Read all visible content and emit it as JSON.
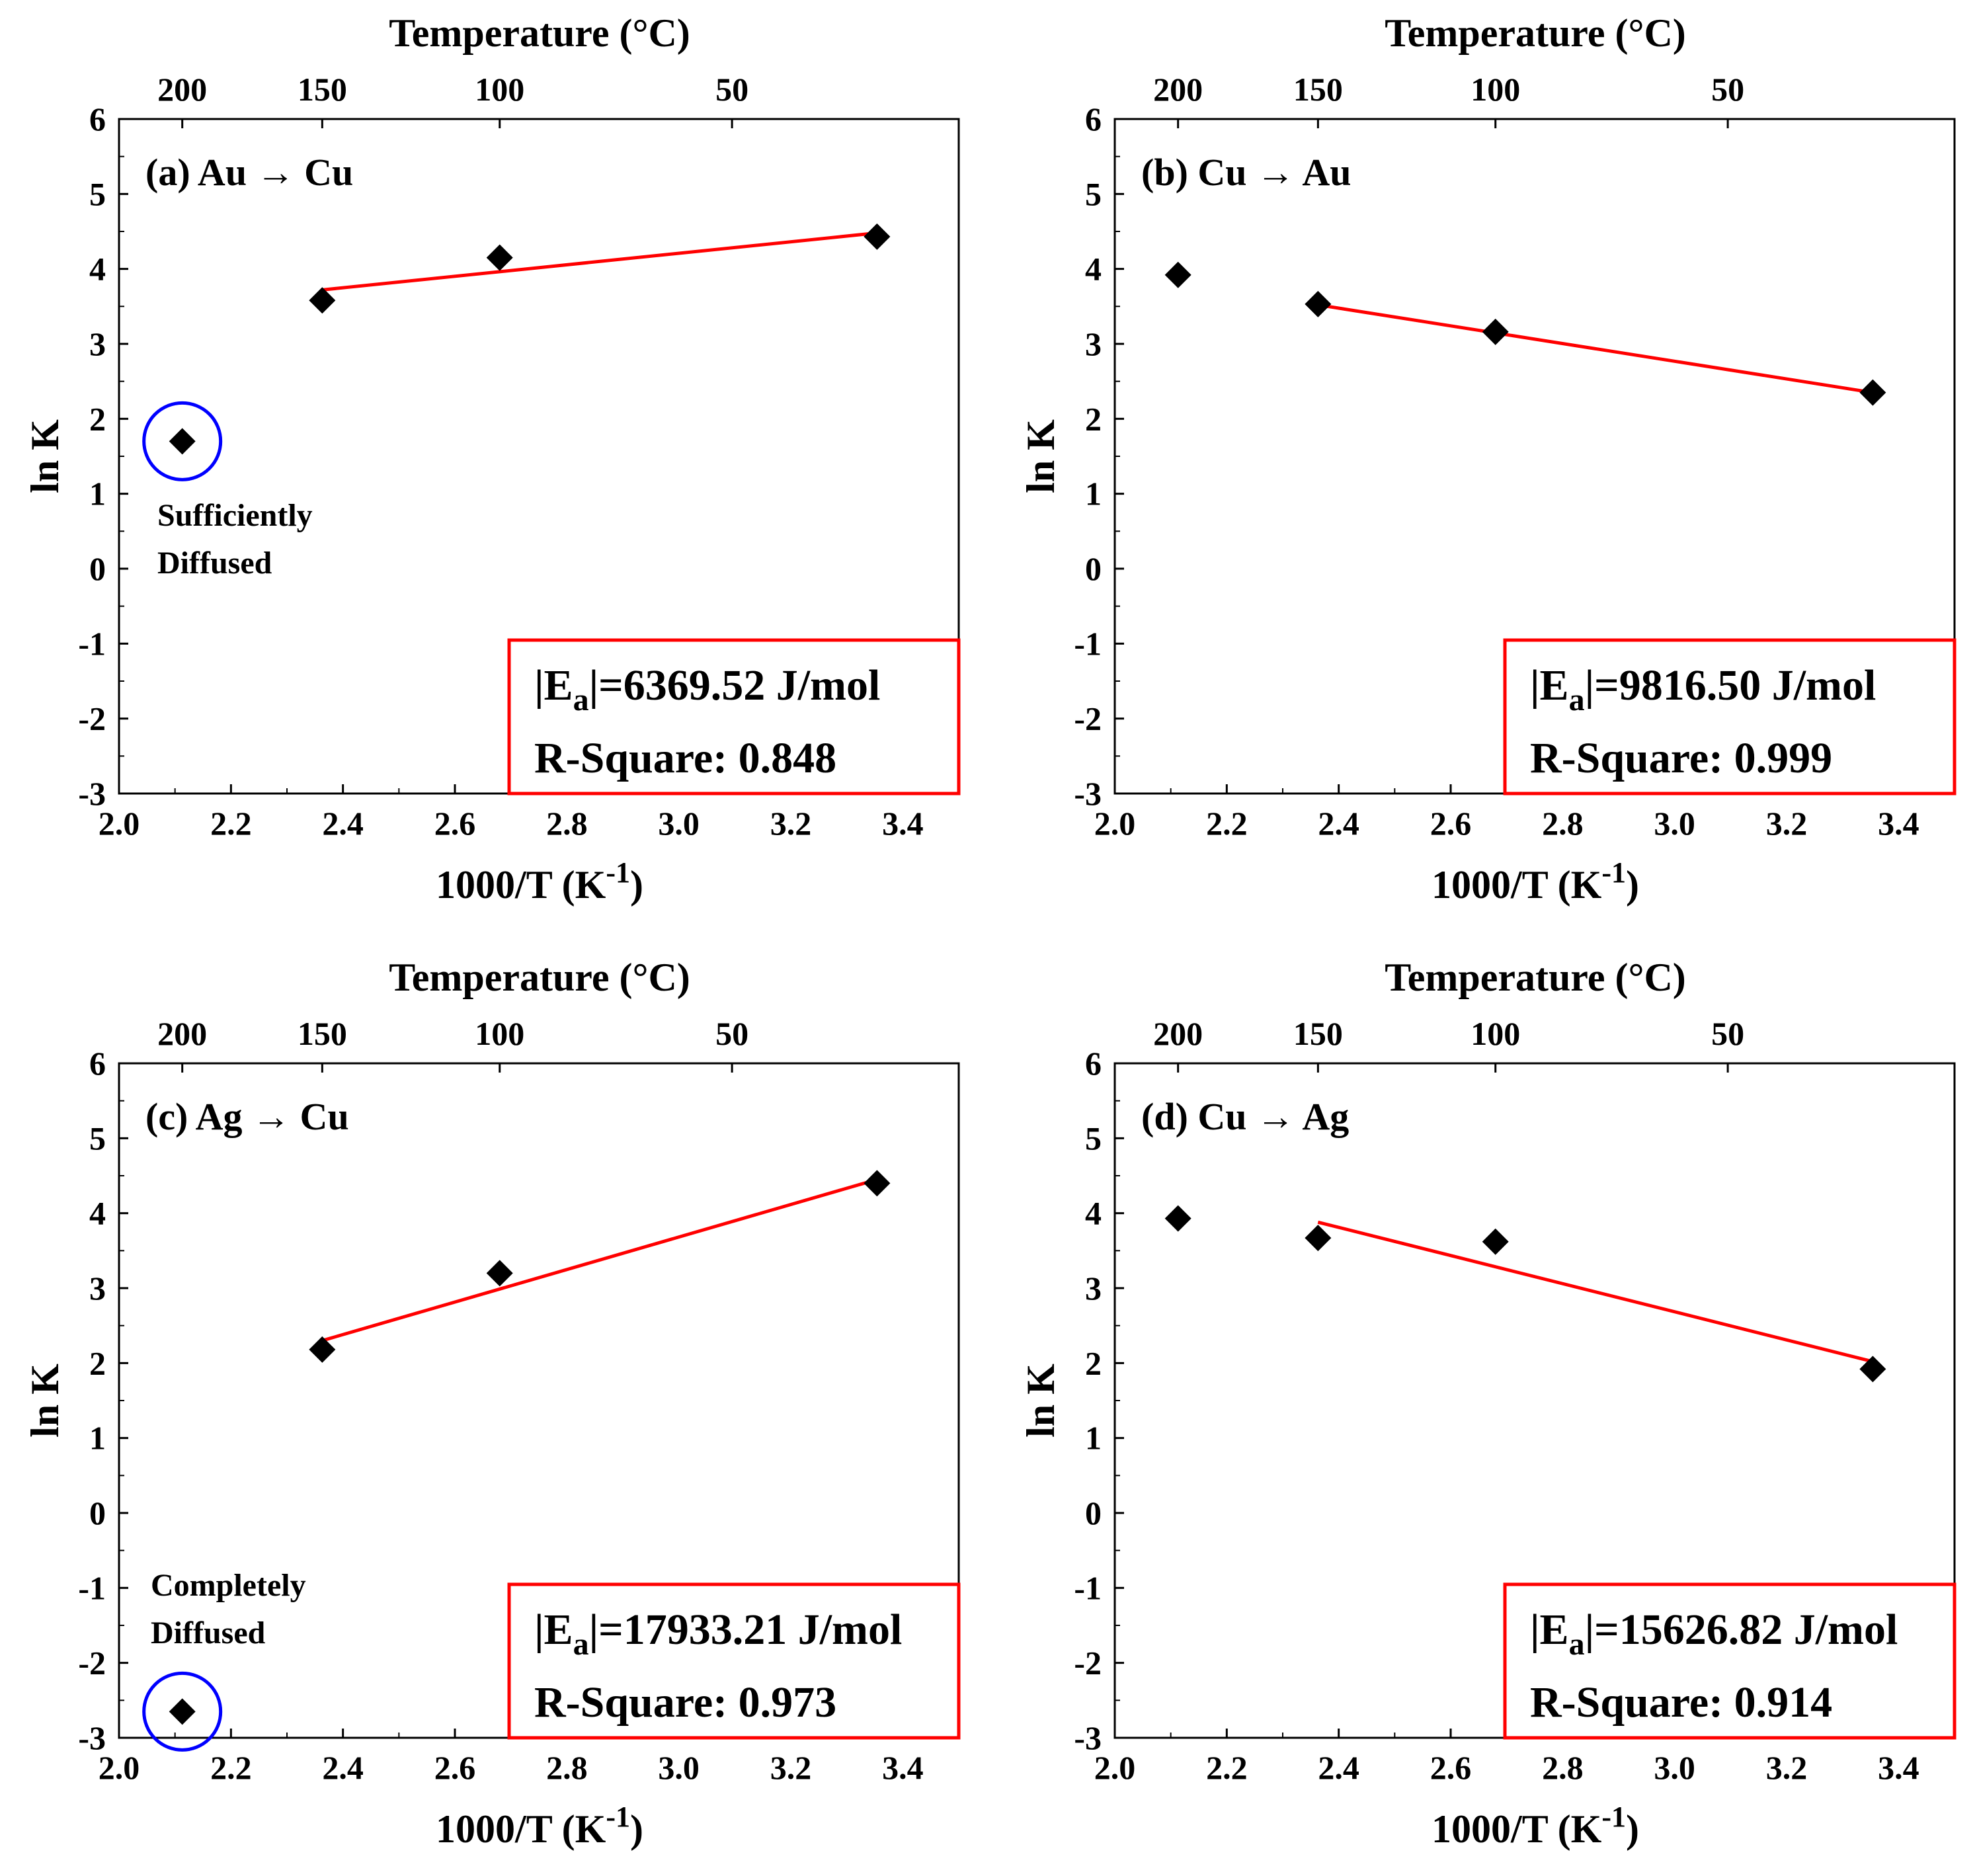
{
  "figure": {
    "colors": {
      "fit_line": "#ff0000",
      "box_border": "#ff0000",
      "outlier_circle": "#0000ff",
      "marker": "#000000"
    }
  },
  "chart_data": [
    {
      "type": "scatter",
      "label": "(a) Au → Cu",
      "xlabel": "1000/T (K",
      "xlabel_sup": "-1",
      "xlabel_tail": ")",
      "ylabel": "ln K",
      "top_axis_label": "Temperature (°C)",
      "xlim": [
        2.0,
        3.5
      ],
      "ylim": [
        -3,
        6
      ],
      "x_ticks": [
        "2.0",
        "2.2",
        "2.4",
        "2.6",
        "2.8",
        "3.0",
        "3.2",
        "3.4"
      ],
      "y_ticks": [
        "-3",
        "-2",
        "-1",
        "0",
        "1",
        "2",
        "3",
        "4",
        "5",
        "6"
      ],
      "top_ticks": [
        {
          "label": "200",
          "at_x": 2.113
        },
        {
          "label": "150",
          "at_x": 2.363
        },
        {
          "label": "100",
          "at_x": 2.68
        },
        {
          "label": "50",
          "at_x": 3.095
        }
      ],
      "points": [
        {
          "x": 2.113,
          "y": 1.7
        },
        {
          "x": 2.363,
          "y": 3.58
        },
        {
          "x": 2.68,
          "y": 4.15
        },
        {
          "x": 3.354,
          "y": 4.43
        }
      ],
      "fit": {
        "x": [
          2.363,
          3.354
        ],
        "y": [
          3.72,
          4.48
        ]
      },
      "outlier": {
        "x": 2.113,
        "y": 1.7
      },
      "annotation": [
        "Sufficiently",
        "Diffused"
      ],
      "annotation_pos": "middle-left",
      "stats_box": {
        "ea_prefix": "|E",
        "ea_sub": "a",
        "ea_value": "|=6369.52 J/mol",
        "r_square": "R-Square: 0.848"
      }
    },
    {
      "type": "scatter",
      "label": "(b) Cu → Au",
      "xlabel": "1000/T (K",
      "xlabel_sup": "-1",
      "xlabel_tail": ")",
      "ylabel": "ln K",
      "top_axis_label": "Temperature (°C)",
      "xlim": [
        2.0,
        3.5
      ],
      "ylim": [
        -3,
        6
      ],
      "x_ticks": [
        "2.0",
        "2.2",
        "2.4",
        "2.6",
        "2.8",
        "3.0",
        "3.2",
        "3.4"
      ],
      "y_ticks": [
        "-3",
        "-2",
        "-1",
        "0",
        "1",
        "2",
        "3",
        "4",
        "5",
        "6"
      ],
      "top_ticks": [
        {
          "label": "200",
          "at_x": 2.113
        },
        {
          "label": "150",
          "at_x": 2.363
        },
        {
          "label": "100",
          "at_x": 2.68
        },
        {
          "label": "50",
          "at_x": 3.095
        }
      ],
      "points": [
        {
          "x": 2.113,
          "y": 3.92
        },
        {
          "x": 2.363,
          "y": 3.53
        },
        {
          "x": 2.68,
          "y": 3.16
        },
        {
          "x": 3.354,
          "y": 2.35
        }
      ],
      "fit": {
        "x": [
          2.363,
          3.354
        ],
        "y": [
          3.52,
          2.35
        ]
      },
      "outlier": null,
      "annotation": [],
      "annotation_pos": "",
      "stats_box": {
        "ea_prefix": "|E",
        "ea_sub": "a",
        "ea_value": "|=9816.50 J/mol",
        "r_square": "R-Square: 0.999"
      }
    },
    {
      "type": "scatter",
      "label": "(c) Ag → Cu",
      "xlabel": "1000/T (K",
      "xlabel_sup": "-1",
      "xlabel_tail": ")",
      "ylabel": "ln K",
      "top_axis_label": "Temperature (°C)",
      "xlim": [
        2.0,
        3.5
      ],
      "ylim": [
        -3,
        6
      ],
      "x_ticks": [
        "2.0",
        "2.2",
        "2.4",
        "2.6",
        "2.8",
        "3.0",
        "3.2",
        "3.4"
      ],
      "y_ticks": [
        "-3",
        "-2",
        "-1",
        "0",
        "1",
        "2",
        "3",
        "4",
        "5",
        "6"
      ],
      "top_ticks": [
        {
          "label": "200",
          "at_x": 2.113
        },
        {
          "label": "150",
          "at_x": 2.363
        },
        {
          "label": "100",
          "at_x": 2.68
        },
        {
          "label": "50",
          "at_x": 3.095
        }
      ],
      "points": [
        {
          "x": 2.113,
          "y": -2.65
        },
        {
          "x": 2.363,
          "y": 2.18
        },
        {
          "x": 2.68,
          "y": 3.2
        },
        {
          "x": 3.354,
          "y": 4.4
        }
      ],
      "fit": {
        "x": [
          2.363,
          3.354
        ],
        "y": [
          2.3,
          4.45
        ]
      },
      "outlier": {
        "x": 2.113,
        "y": -2.65
      },
      "annotation": [
        "Completely",
        "Diffused"
      ],
      "annotation_pos": "bottom-left",
      "stats_box": {
        "ea_prefix": "|E",
        "ea_sub": "a",
        "ea_value": "|=17933.21 J/mol",
        "r_square": "R-Square: 0.973"
      }
    },
    {
      "type": "scatter",
      "label": "(d) Cu → Ag",
      "xlabel": "1000/T (K",
      "xlabel_sup": "-1",
      "xlabel_tail": ")",
      "ylabel": "ln K",
      "top_axis_label": "Temperature (°C)",
      "xlim": [
        2.0,
        3.5
      ],
      "ylim": [
        -3,
        6
      ],
      "x_ticks": [
        "2.0",
        "2.2",
        "2.4",
        "2.6",
        "2.8",
        "3.0",
        "3.2",
        "3.4"
      ],
      "y_ticks": [
        "-3",
        "-2",
        "-1",
        "0",
        "1",
        "2",
        "3",
        "4",
        "5",
        "6"
      ],
      "top_ticks": [
        {
          "label": "200",
          "at_x": 2.113
        },
        {
          "label": "150",
          "at_x": 2.363
        },
        {
          "label": "100",
          "at_x": 2.68
        },
        {
          "label": "50",
          "at_x": 3.095
        }
      ],
      "points": [
        {
          "x": 2.113,
          "y": 3.93
        },
        {
          "x": 2.363,
          "y": 3.67
        },
        {
          "x": 2.68,
          "y": 3.62
        },
        {
          "x": 3.354,
          "y": 1.92
        }
      ],
      "fit": {
        "x": [
          2.363,
          3.354
        ],
        "y": [
          3.88,
          2.02
        ]
      },
      "outlier": null,
      "annotation": [],
      "annotation_pos": "",
      "stats_box": {
        "ea_prefix": "|E",
        "ea_sub": "a",
        "ea_value": "|=15626.82 J/mol",
        "r_square": "R-Square: 0.914"
      }
    }
  ]
}
